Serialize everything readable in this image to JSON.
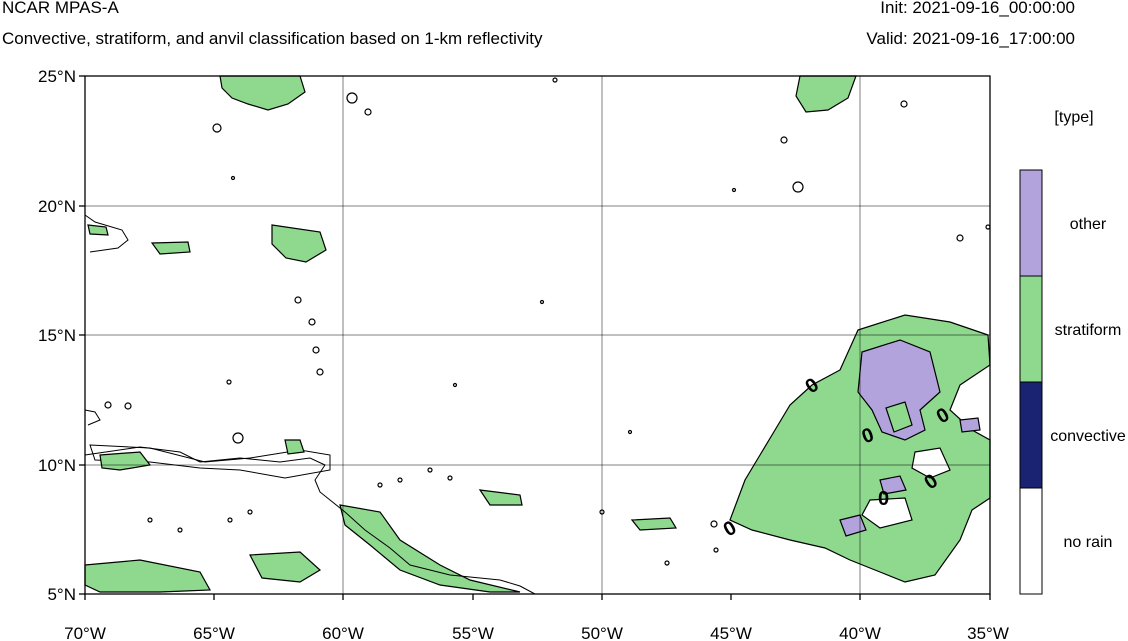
{
  "header": {
    "title": "NCAR MPAS-A",
    "subtitle": "Convective, stratiform, and anvil classification based on 1-km reflectivity",
    "init": "Init: 2021-09-16_00:00:00",
    "valid": "Valid: 2021-09-16_17:00:00"
  },
  "map": {
    "x_ticks": [
      "70°W",
      "65°W",
      "60°W",
      "55°W",
      "50°W",
      "45°W",
      "40°W",
      "35°W"
    ],
    "y_ticks": [
      "25°N",
      "20°N",
      "15°N",
      "10°N",
      "5°N"
    ],
    "lon_range": [
      -70,
      -35
    ],
    "lat_range": [
      5,
      25
    ],
    "gridlines": true,
    "contour_labels": [
      "0",
      "0",
      "0",
      "0",
      "0",
      "0"
    ]
  },
  "legend": {
    "title": "[type]",
    "entries": [
      {
        "label": "other",
        "color": "#b3a3dc"
      },
      {
        "label": "stratiform",
        "color": "#8fd98f"
      },
      {
        "label": "convective",
        "color": "#1a2372"
      },
      {
        "label": "no rain",
        "color": "#ffffff"
      }
    ]
  },
  "colors": {
    "stratiform": "#8fd98f",
    "other": "#b3a3dc",
    "convective": "#1a2372"
  }
}
